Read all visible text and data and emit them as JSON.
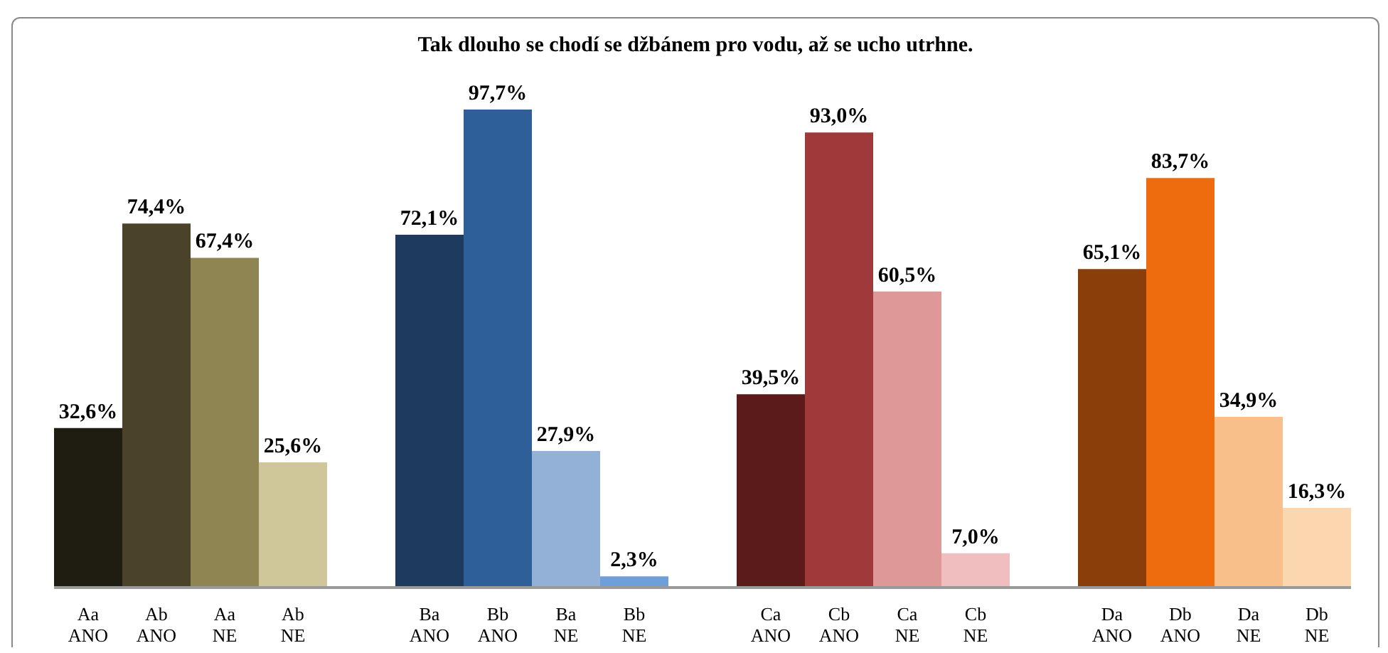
{
  "chart_data": {
    "type": "bar",
    "title": "Tak dlouho se chodí se džbánem pro vodu, až se ucho utrhne.",
    "categories": [
      "Aa ANO",
      "Ab ANO",
      "Aa NE",
      "Ab NE",
      null,
      "Ba ANO",
      "Bb ANO",
      "Ba NE",
      "Bb NE",
      null,
      "Ca ANO",
      "Cb ANO",
      "Ca NE",
      "Cb NE",
      null,
      "Da ANO",
      "Db ANO",
      "Da NE",
      "Db NE"
    ],
    "values": [
      32.6,
      74.4,
      67.4,
      25.6,
      null,
      72.1,
      97.7,
      27.9,
      2.3,
      null,
      39.5,
      93.0,
      60.5,
      7.0,
      null,
      65.1,
      83.7,
      34.9,
      16.3
    ],
    "value_labels": [
      "32,6%",
      "74,4%",
      "67,4%",
      "25,6%",
      null,
      "72,1%",
      "97,7%",
      "27,9%",
      "2,3%",
      null,
      "39,5%",
      "93,0%",
      "60,5%",
      "7,0%",
      null,
      "65,1%",
      "83,7%",
      "34,9%",
      "16,3%"
    ],
    "colors": [
      "#1f1c12",
      "#4a4229",
      "#8f8552",
      "#cfc69a",
      null,
      "#1f3a5f",
      "#2f5f98",
      "#93b1d6",
      "#6f9fd8",
      null,
      "#5c1b1b",
      "#a0393a",
      "#df9898",
      "#f0bebe",
      null,
      "#8a3f0a",
      "#ee6c0e",
      "#f9bf8a",
      "#fbd6ae"
    ]
  }
}
